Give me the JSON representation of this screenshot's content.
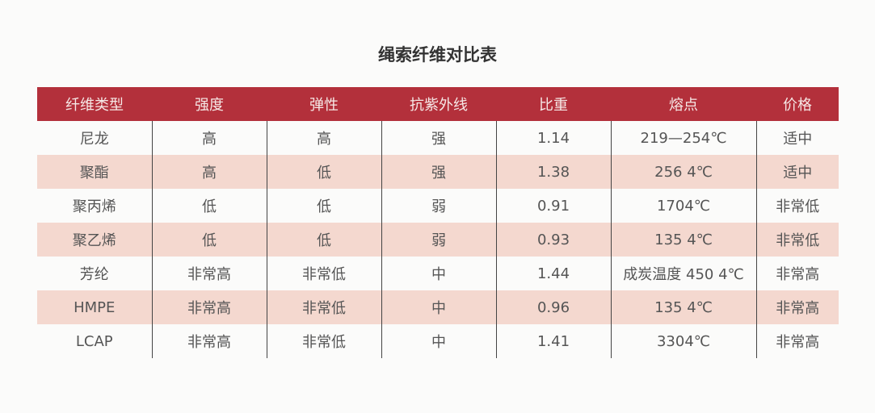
{
  "title": "绳索纤维对比表",
  "colors": {
    "header_bg": "#b3303b",
    "stripe": "#f4d8cf"
  },
  "headers": [
    "纤维类型",
    "强度",
    "弹性",
    "抗紫外线",
    "比重",
    "熔点",
    "价格"
  ],
  "rows": [
    [
      "尼龙",
      "高",
      "高",
      "强",
      "1.14",
      "219—254℃",
      "适中"
    ],
    [
      "聚酯",
      "高",
      "低",
      "强",
      "1.38",
      "256 4℃",
      "适中"
    ],
    [
      "聚丙烯",
      "低",
      "低",
      "弱",
      "0.91",
      "1704℃",
      "非常低"
    ],
    [
      "聚乙烯",
      "低",
      "低",
      "弱",
      "0.93",
      "135 4℃",
      "非常低"
    ],
    [
      "芳纶",
      "非常高",
      "非常低",
      "中",
      "1.44",
      "成炭温度 450 4℃",
      "非常高"
    ],
    [
      "HMPE",
      "非常高",
      "非常低",
      "中",
      "0.96",
      "135 4℃",
      "非常高"
    ],
    [
      "LCAP",
      "非常高",
      "非常低",
      "中",
      "1.41",
      "3304℃",
      "非常高"
    ]
  ]
}
